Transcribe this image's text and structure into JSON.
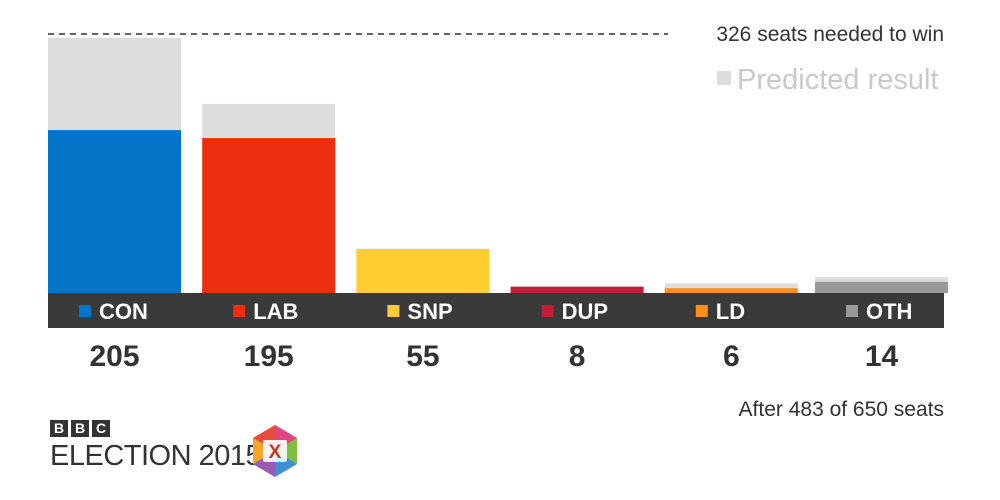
{
  "chart_data": {
    "type": "bar",
    "categories": [
      "CON",
      "LAB",
      "SNP",
      "DUP",
      "LD",
      "OTH"
    ],
    "series": [
      {
        "values": [
          205,
          195,
          55,
          8,
          6,
          14
        ]
      },
      {
        "name": "Predicted result",
        "values": [
          321,
          238,
          56,
          8,
          12,
          20
        ]
      }
    ],
    "colors": [
      "#0575c9",
      "#ed2e0e",
      "#fecd2f",
      "#c21e37",
      "#fb8e1c",
      "#999999"
    ],
    "predicted_color": "#dddddd",
    "threshold": {
      "value": 326,
      "label": "326 seats needed to win"
    },
    "ylim": [
      0,
      326
    ],
    "legend_position": "top-right",
    "grid": false,
    "note": "After 483 of 650 seats"
  },
  "brand": {
    "bbc_letters": [
      "B",
      "B",
      "C"
    ],
    "title": "ELECTION 2015",
    "logo_letter": "X"
  }
}
